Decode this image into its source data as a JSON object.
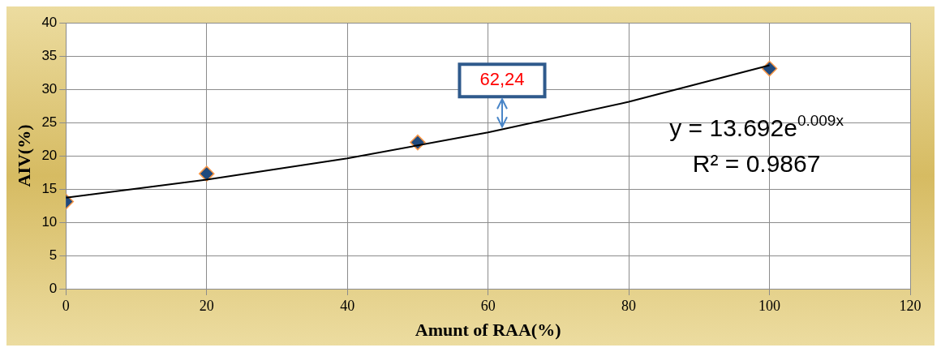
{
  "chart_data": {
    "type": "scatter",
    "xlabel": "Amunt of RAA(%)",
    "ylabel": "AIV(%)",
    "series": [
      {
        "color": "#1f497d",
        "x": [
          0,
          20,
          50,
          100
        ],
        "values": [
          13.1,
          17.3,
          22.0,
          33.1
        ]
      },
      {
        "type": "line",
        "color": "#000000",
        "x": [
          0,
          20,
          40,
          60,
          80,
          100
        ],
        "values": [
          13.7,
          16.4,
          19.6,
          23.5,
          28.1,
          33.6
        ],
        "marker": "none"
      }
    ],
    "xlim": [
      0,
      120
    ],
    "xticks": [
      0,
      20,
      40,
      60,
      80,
      100,
      120
    ],
    "ylim": [
      0,
      40
    ],
    "yticks": [
      0,
      5,
      10,
      15,
      20,
      25,
      30,
      35,
      40
    ],
    "grid": true,
    "legend": false,
    "marker": "diamond",
    "annotations": [
      {
        "text": "62,24",
        "x": 62,
        "y": 24
      },
      "y = 13.692e$^{0.009x}$",
      "R² = 0.9867"
    ]
  }
}
